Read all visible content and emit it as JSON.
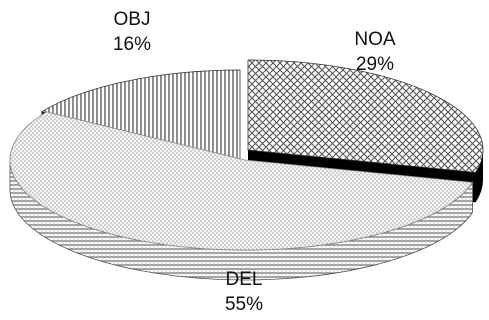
{
  "chart_data": {
    "type": "pie",
    "style": "3d-exploded",
    "title": "",
    "slices": [
      {
        "label": "NOA",
        "percent_label": "29%",
        "value": 29,
        "pattern": "crosshatch"
      },
      {
        "label": "DEL",
        "percent_label": "55%",
        "value": 55,
        "pattern": "horizontal-lines"
      },
      {
        "label": "OBJ",
        "percent_label": "16%",
        "value": 16,
        "pattern": "vertical-lines"
      }
    ],
    "legend": "none"
  }
}
